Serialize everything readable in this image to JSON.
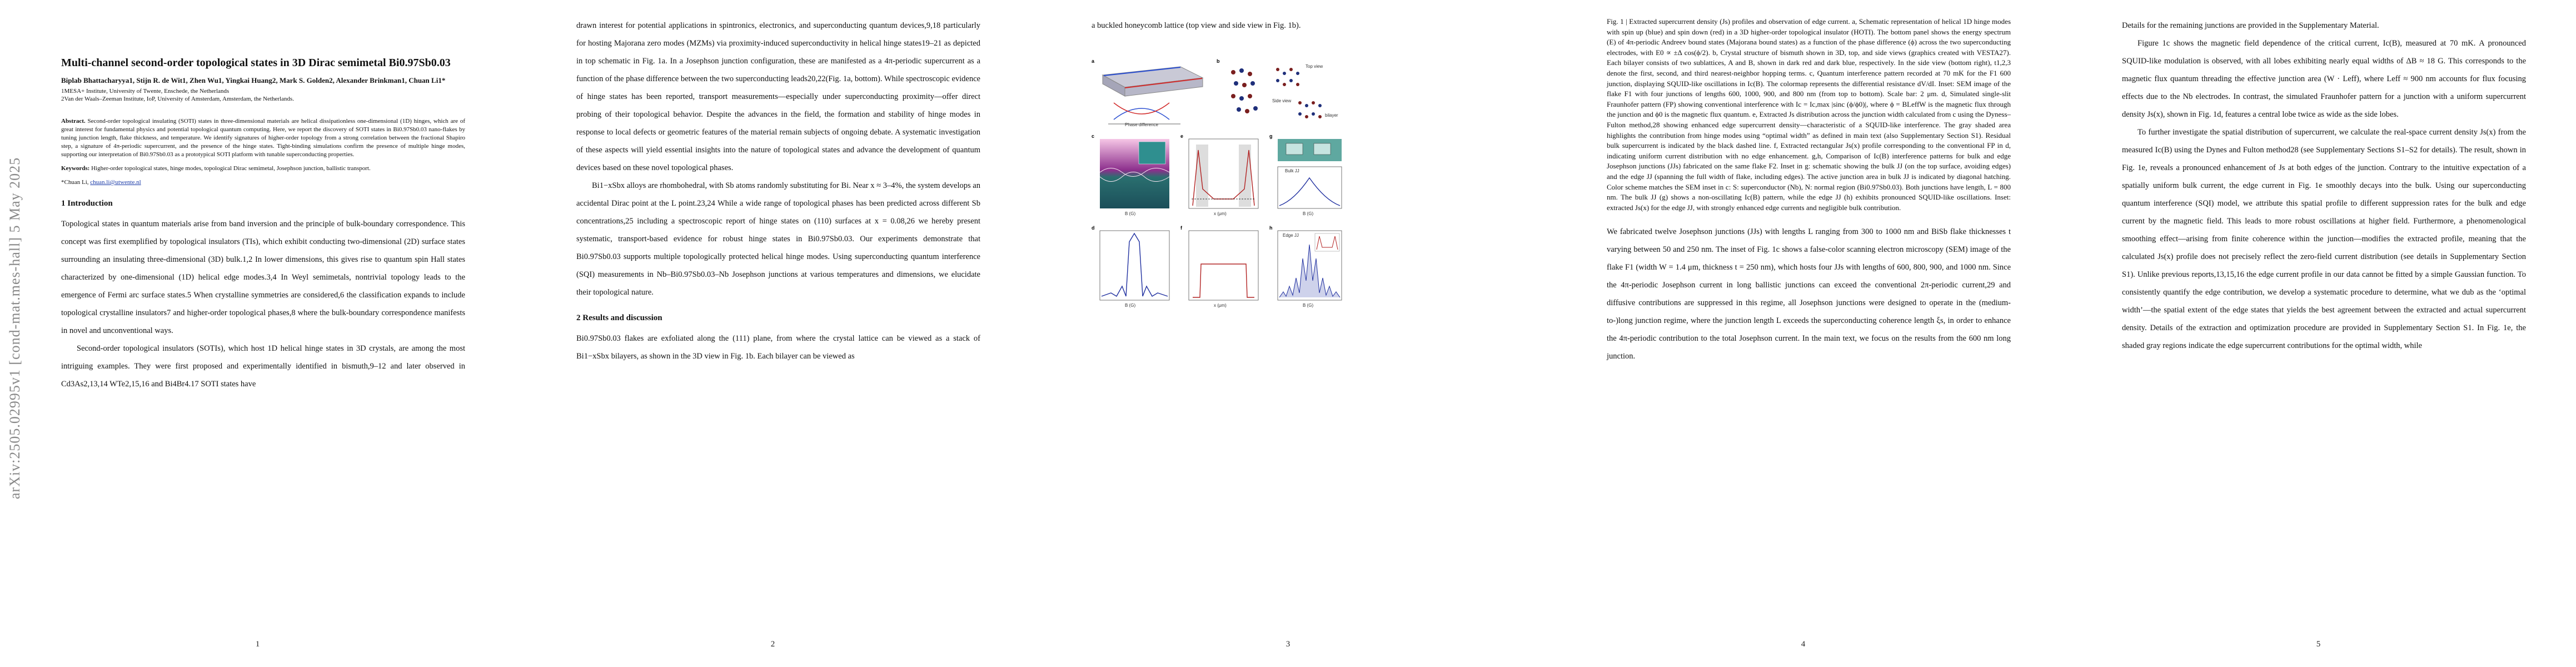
{
  "arxiv_stamp": "arXiv:2505.02995v1  [cond-mat.mes-hall]  5 May 2025",
  "page_numbers": [
    "1",
    "2",
    "3",
    "4",
    "5"
  ],
  "page1": {
    "title": "Multi-channel second-order topological states in 3D Dirac semimetal Bi0.97Sb0.03",
    "authors": "Biplab Bhattacharyya1, Stijn R. de Wit1, Zhen Wu1, Yingkai Huang2, Mark S. Golden2, Alexander Brinkman1, Chuan Li1*",
    "affiliations": [
      "1MESA+ Institute, University of Twente, Enschede, the Netherlands",
      "2Van der Waals–Zeeman Institute, IoP, University of Amsterdam, Amsterdam, the Netherlands."
    ],
    "abstract_label": "Abstract.",
    "abstract": "Second-order topological insulating (SOTI) states in three-dimensional materials are helical dissipationless one-dimensional (1D) hinges, which are of great interest for fundamental physics and potential topological quantum computing. Here, we report the discovery of SOTI states in Bi0.97Sb0.03 nano-flakes by tuning junction length, flake thickness, and temperature. We identify signatures of higher-order topology from a strong correlation between the fractional Shapiro step, a signature of 4π-periodic supercurrent, and the presence of the hinge states. Tight-binding simulations confirm the presence of multiple hinge modes, supporting our interpretation of Bi0.97Sb0.03 as a prototypical SOTI platform with tunable superconducting properties.",
    "keywords_label": "Keywords:",
    "keywords": "Higher-order topological states, hinge modes, topological Dirac semimetal, Josephson junction, ballistic transport.",
    "corresponding_label": "*Chuan Li,",
    "corresponding_email": "chuan.li@utwente.nl",
    "section_title": "1  Introduction",
    "paragraphs": [
      "Topological states in quantum materials arise from band inversion and the principle of bulk-boundary correspondence. This concept was first exemplified by topological insulators (TIs), which exhibit conducting two-dimensional (2D) surface states surrounding an insulating three-dimensional (3D) bulk.1,2 In lower dimensions, this gives rise to quantum spin Hall states characterized by one-dimensional (1D) helical edge modes.3,4 In Weyl semimetals, nontrivial topology leads to the emergence of Fermi arc surface states.5 When crystalline symmetries are considered,6 the classification expands to include topological crystalline insulators7 and higher-order topological phases,8 where the bulk-boundary correspondence manifests in novel and unconventional ways.",
      "Second-order topological insulators (SOTIs), which host 1D helical hinge states in 3D crystals, are among the most intriguing examples. They were first proposed and experimentally identified in bismuth,9–12 and later observed in Cd3As2,13,14 WTe2,15,16 and Bi4Br4.17 SOTI states have"
    ]
  },
  "page2": {
    "paragraphs": [
      "drawn interest for potential applications in spintronics, electronics, and superconducting quantum devices,9,18 particularly for hosting Majorana zero modes (MZMs) via proximity-induced superconductivity in helical hinge states19–21 as depicted in top schematic in Fig. 1a. In a Josephson junction configuration, these are manifested as a 4π-periodic supercurrent as a function of the phase difference between the two superconducting leads20,22(Fig. 1a, bottom). While spectroscopic evidence of hinge states has been reported, transport measurements—especially under superconducting proximity—offer direct probing of their topological behavior. Despite the advances in the field, the formation and stability of hinge modes in response to local defects or geometric features of the material remain subjects of ongoing debate. A systematic investigation of these aspects will yield essential insights into the nature of topological states and advance the development of quantum devices based on these novel topological phases.",
      "Bi1−xSbx alloys are rhombohedral, with Sb atoms randomly substituting for Bi. Near x ≈ 3–4%, the system develops an accidental Dirac point at the L point.23,24 While a wide range of topological phases has been predicted across different Sb concentrations,25 including a spectroscopic report of hinge states on (110) surfaces at x = 0.08,26 we hereby present systematic, transport-based evidence for robust hinge states in Bi0.97Sb0.03. Our experiments demonstrate that Bi0.97Sb0.03 supports multiple topologically protected helical hinge modes. Using superconducting quantum interference (SQI) measurements in Nb–Bi0.97Sb0.03–Nb Josephson junctions at various temperatures and dimensions, we elucidate their topological nature."
    ],
    "section_title": "2  Results and discussion",
    "paragraph_after": "Bi0.97Sb0.03 flakes are exfoliated along the (111) plane, from where the crystal lattice can be viewed as a stack of Bi1−xSbx bilayers, as shown in the 3D view in Fig. 1b. Each bilayer can be viewed as"
  },
  "page3": {
    "intro_line": "a buckled honeycomb lattice (top view and side view in Fig. 1b).",
    "figure_labels": {
      "a": "a",
      "b": "b",
      "c": "c",
      "d": "d",
      "e": "e",
      "f": "f",
      "g": "g",
      "h": "h",
      "i": "i"
    },
    "figure_texts": {
      "phase_axis": "Phase difference",
      "top_view": "Top view",
      "side_view": "Side view",
      "bilayer": "bilayer",
      "bulk_jj": "Bulk JJ",
      "edge_jj": "Edge JJ",
      "b_axis": "B (G)",
      "x_axis": "x (μm)"
    }
  },
  "page4": {
    "caption": "Fig. 1 | Extracted supercurrent density (Js) profiles and observation of edge current. a, Schematic representation of helical 1D hinge modes with spin up (blue) and spin down (red) in a 3D higher-order topological insulator (HOTI). The bottom panel shows the energy spectrum (E) of 4π-periodic Andreev bound states (Majorana bound states) as a function of the phase difference (ϕ) across the two superconducting electrodes, with E0 ∝ ±Δ cos(ϕ/2). b, Crystal structure of bismuth shown in 3D, top, and side views (graphics created with VESTA27). Each bilayer consists of two sublattices, A and B, shown in dark red and dark blue, respectively. In the side view (bottom right), t1,2,3 denote the first, second, and third nearest-neighbor hopping terms. c, Quantum interference pattern recorded at 70 mK for the F1 600 junction, displaying SQUID-like oscillations in Ic(B). The colormap represents the differential resistance dV/dI. Inset: SEM image of the flake F1 with four junctions of lengths 600, 1000, 900, and 800 nm (from top to bottom). Scale bar: 2 μm. d, Simulated single-slit Fraunhofer pattern (FP) showing conventional interference with Ic = Ic,max |sinc (ϕ/ϕ0)|, where ϕ = BLeffW is the magnetic flux through the junction and ϕ0 is the magnetic flux quantum. e, Extracted Js distribution across the junction width calculated from c using the Dyness–Fulton method,28 showing enhanced edge supercurrent density—characteristic of a SQUID-like interference. The gray shaded area highlights the contribution from hinge modes using “optimal width” as defined in main text (also Supplementary Section S1). Residual bulk supercurrent is indicated by the black dashed line. f, Extracted rectangular Js(x) profile corresponding to the conventional FP in d, indicating uniform current distribution with no edge enhancement. g,h, Comparison of Ic(B) interference patterns for bulk and edge Josephson junctions (JJs) fabricated on the same flake F2. Inset in g: schematic showing the bulk JJ (on the top surface, avoiding edges) and the edge JJ (spanning the full width of flake, including edges). The active junction area in bulk JJ is indicated by diagonal hatching. Color scheme matches the SEM inset in c: S: superconductor (Nb), N: normal region (Bi0.97Sb0.03). Both junctions have length, L = 800 nm. The bulk JJ (g) shows a non-oscillating Ic(B) pattern, while the edge JJ (h) exhibits pronounced SQUID-like oscillations. Inset: extracted Js(x) for the edge JJ, with strongly enhanced edge currents and negligible bulk contribution.",
    "paragraph": "We fabricated twelve Josephson junctions (JJs) with lengths L ranging from 300 to 1000 nm and BiSb flake thicknesses t varying between 50 and 250 nm. The inset of Fig. 1c shows a false-color scanning electron microscopy (SEM) image of the flake F1 (width W = 1.4 μm, thickness t = 250 nm), which hosts four JJs with lengths of 600, 800, 900, and 1000 nm. Since the 4π-periodic Josephson current in long ballistic junctions can exceed the conventional 2π-periodic current,29 and diffusive contributions are suppressed in this regime, all Josephson junctions were designed to operate in the (medium-to-)long junction regime, where the junction length L exceeds the superconducting coherence length ξs, in order to enhance the 4π-periodic contribution to the total Josephson current. In the main text, we focus on the results from the 600 nm long junction."
  },
  "page5": {
    "paragraphs": [
      "Details for the remaining junctions are provided in the Supplementary Material.",
      "Figure 1c shows the magnetic field dependence of the critical current, Ic(B), measured at 70 mK. A pronounced SQUID-like modulation is observed, with all lobes exhibiting nearly equal widths of ΔB ≈ 18 G. This corresponds to the magnetic flux quantum threading the effective junction area (W · Leff), where Leff ≈ 900 nm accounts for flux focusing effects due to the Nb electrodes. In contrast, the simulated Fraunhofer pattern for a junction with a uniform supercurrent density Js(x), shown in Fig. 1d, features a central lobe twice as wide as the side lobes.",
      "To further investigate the spatial distribution of supercurrent, we calculate the real-space current density Js(x) from the measured Ic(B) using the Dynes and Fulton method28 (see Supplementary Sections S1–S2 for details). The result, shown in Fig. 1e, reveals a pronounced enhancement of Js at both edges of the junction. Contrary to the intuitive expectation of a spatially uniform bulk current, the edge current in Fig. 1e smoothly decays into the bulk. Using our superconducting quantum interference (SQI) model, we attribute this spatial profile to different suppression rates for the bulk and edge current by the magnetic field. This leads to more robust oscillations at higher field. Furthermore, a phenomenological smoothing effect—arising from finite coherence within the junction—modifies the extracted profile, meaning that the calculated Js(x) profile does not precisely reflect the zero-field current distribution (see details in Supplementary Section S1). Unlike previous reports,13,15,16 the edge current profile in our data cannot be fitted by a simple Gaussian function. To consistently quantify the edge contribution, we develop a systematic procedure to determine, what we dub as the ‘optimal width’—the spatial extent of the edge states that yields the best agreement between the extracted and actual supercurrent density. Details of the extraction and optimization procedure are provided in Supplementary Section S1. In Fig. 1e, the shaded gray regions indicate the edge supercurrent contributions for the optimal width, while"
    ]
  },
  "colors": {
    "link_blue": "#1a3aa8",
    "spin_up": "#2b4fd1",
    "spin_down": "#d12b2b",
    "curve_red": "#b22222",
    "curve_blue": "#1f2f9f"
  }
}
